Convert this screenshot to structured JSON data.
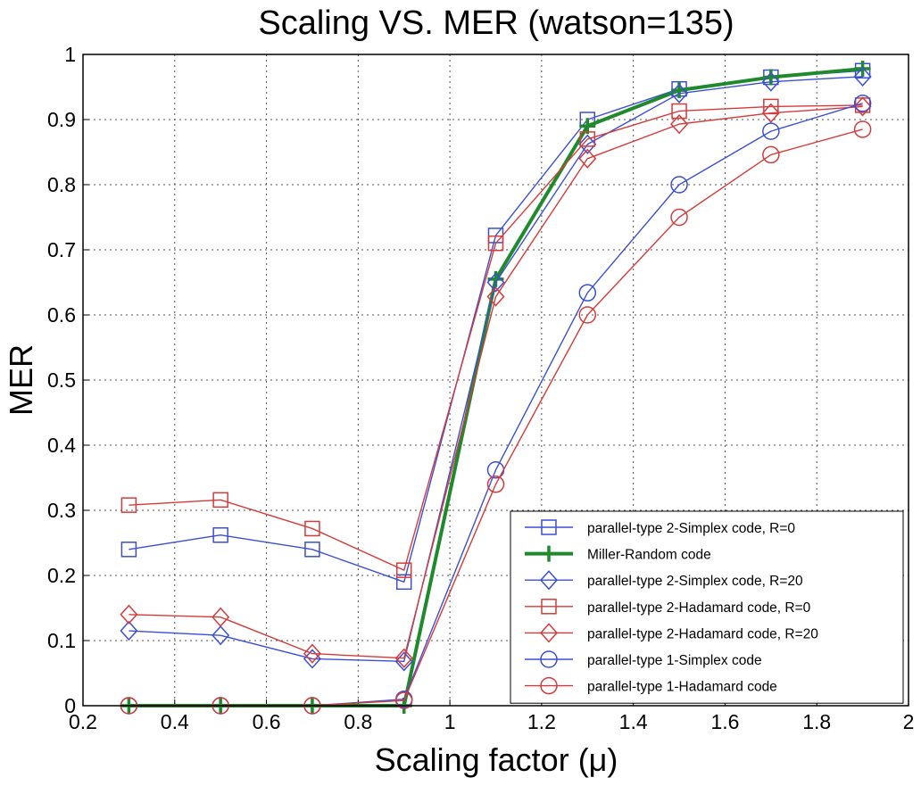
{
  "chart_data": {
    "type": "line",
    "title": "Scaling VS. MER (watson=135)",
    "xlabel": "Scaling factor (μ)",
    "ylabel": "MER",
    "xlim": [
      0.2,
      2
    ],
    "ylim": [
      0,
      1
    ],
    "xticks": [
      "0.2",
      "0.4",
      "0.6",
      "0.8",
      "1",
      "1.2",
      "1.4",
      "1.6",
      "1.8",
      "2"
    ],
    "yticks": [
      "0",
      "0.1",
      "0.2",
      "0.3",
      "0.4",
      "0.5",
      "0.6",
      "0.7",
      "0.8",
      "0.9",
      "1"
    ],
    "grid": true,
    "legend_position": "bottom-right",
    "x": [
      0.3,
      0.5,
      0.7,
      0.9,
      1.1,
      1.3,
      1.5,
      1.7,
      1.9
    ],
    "series": [
      {
        "name": "parallel-type 2-Simplex code, R=0",
        "color": "#3b4fd6",
        "marker": "square",
        "width": 1.4,
        "values": [
          0.24,
          0.262,
          0.24,
          0.19,
          0.722,
          0.9,
          0.947,
          0.965,
          0.975
        ]
      },
      {
        "name": "Miller-Random code",
        "color": "#1f8a2c",
        "marker": "plus",
        "width": 4,
        "values": [
          0,
          0,
          0,
          0,
          0.655,
          0.89,
          0.945,
          0.965,
          0.978
        ]
      },
      {
        "name": "parallel-type 2-Simplex code, R=20",
        "color": "#3b4fd6",
        "marker": "diamond",
        "width": 1.4,
        "values": [
          0.115,
          0.108,
          0.072,
          0.068,
          0.65,
          0.862,
          0.94,
          0.958,
          0.966
        ]
      },
      {
        "name": "parallel-type 2-Hadamard code, R=0",
        "color": "#d63b3b",
        "marker": "square",
        "width": 1.4,
        "values": [
          0.308,
          0.316,
          0.272,
          0.208,
          0.71,
          0.87,
          0.913,
          0.92,
          0.922
        ]
      },
      {
        "name": "parallel-type 2-Hadamard code, R=20",
        "color": "#d63b3b",
        "marker": "diamond",
        "width": 1.4,
        "values": [
          0.14,
          0.136,
          0.08,
          0.073,
          0.628,
          0.84,
          0.893,
          0.91,
          0.92
        ]
      },
      {
        "name": "parallel-type 1-Simplex code",
        "color": "#3b4fd6",
        "marker": "circle",
        "width": 1.4,
        "values": [
          0,
          0,
          0,
          0.01,
          0.362,
          0.634,
          0.8,
          0.882,
          0.925
        ]
      },
      {
        "name": "parallel-type 1-Hadamard code",
        "color": "#d63b3b",
        "marker": "circle",
        "width": 1.4,
        "values": [
          0,
          0,
          0,
          0.008,
          0.34,
          0.6,
          0.75,
          0.846,
          0.885
        ]
      }
    ]
  }
}
